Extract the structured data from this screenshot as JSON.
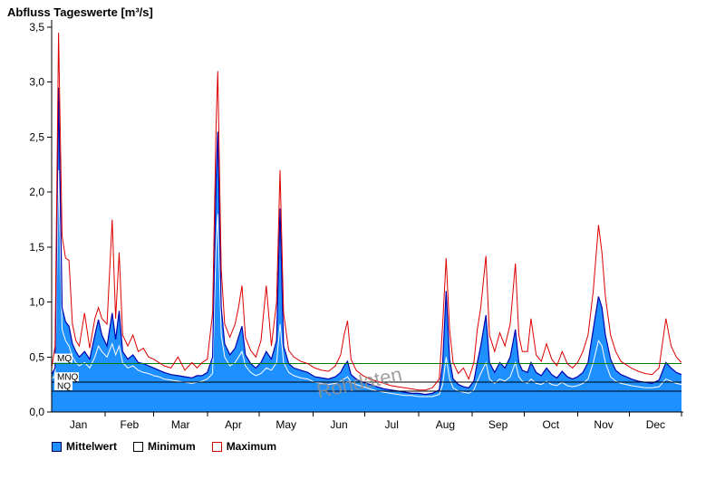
{
  "chart_data": {
    "type": "area",
    "title": "Abfluss Tageswerte [m³/s]",
    "watermark": "Rohdaten",
    "ylim": [
      0,
      3.5
    ],
    "yticks": [
      0,
      0.5,
      1.0,
      1.5,
      2.0,
      2.5,
      3.0,
      3.5
    ],
    "ytick_labels": [
      "0,0",
      "0,5",
      "1,0",
      "1,5",
      "2,0",
      "2,5",
      "3,0",
      "3,5"
    ],
    "month_labels": [
      "Jan",
      "Feb",
      "Mar",
      "Apr",
      "May",
      "Jun",
      "Jul",
      "Aug",
      "Sep",
      "Oct",
      "Nov",
      "Dec"
    ],
    "month_start_days": [
      1,
      32,
      60,
      91,
      121,
      152,
      182,
      213,
      244,
      274,
      305,
      335,
      366
    ],
    "x_days": [
      1,
      3,
      5,
      7,
      9,
      11,
      13,
      15,
      17,
      20,
      23,
      26,
      28,
      30,
      33,
      36,
      38,
      40,
      42,
      45,
      48,
      51,
      54,
      57,
      60,
      63,
      66,
      70,
      74,
      78,
      82,
      85,
      88,
      91,
      94,
      96,
      97,
      99,
      101,
      104,
      107,
      109,
      111,
      113,
      116,
      119,
      122,
      125,
      128,
      131,
      133,
      135,
      138,
      141,
      145,
      149,
      153,
      157,
      161,
      165,
      168,
      170,
      172,
      174,
      177,
      181,
      185,
      189,
      193,
      197,
      201,
      205,
      209,
      213,
      217,
      221,
      225,
      227,
      229,
      231,
      233,
      236,
      239,
      242,
      245,
      247,
      249,
      252,
      254,
      257,
      260,
      263,
      266,
      269,
      271,
      273,
      276,
      278,
      281,
      284,
      287,
      290,
      293,
      296,
      299,
      302,
      305,
      308,
      311,
      314,
      317,
      319,
      321,
      324,
      327,
      330,
      333,
      336,
      340,
      344,
      348,
      352,
      356,
      359,
      362,
      365
    ],
    "series": [
      {
        "name": "Mittelwert",
        "values": [
          0.34,
          0.4,
          2.95,
          0.95,
          0.82,
          0.78,
          0.62,
          0.55,
          0.5,
          0.55,
          0.48,
          0.7,
          0.84,
          0.7,
          0.6,
          0.9,
          0.66,
          0.92,
          0.55,
          0.48,
          0.52,
          0.45,
          0.44,
          0.42,
          0.4,
          0.38,
          0.36,
          0.34,
          0.33,
          0.32,
          0.31,
          0.33,
          0.33,
          0.36,
          0.5,
          2.1,
          2.55,
          0.95,
          0.62,
          0.52,
          0.58,
          0.68,
          0.78,
          0.52,
          0.44,
          0.4,
          0.45,
          0.55,
          0.48,
          0.65,
          1.85,
          0.6,
          0.44,
          0.4,
          0.38,
          0.36,
          0.32,
          0.31,
          0.3,
          0.32,
          0.36,
          0.42,
          0.46,
          0.34,
          0.3,
          0.27,
          0.25,
          0.23,
          0.21,
          0.2,
          0.19,
          0.18,
          0.17,
          0.17,
          0.16,
          0.17,
          0.2,
          0.45,
          1.1,
          0.48,
          0.3,
          0.25,
          0.23,
          0.22,
          0.28,
          0.45,
          0.6,
          0.88,
          0.45,
          0.36,
          0.45,
          0.4,
          0.5,
          0.75,
          0.45,
          0.38,
          0.36,
          0.45,
          0.36,
          0.33,
          0.4,
          0.34,
          0.31,
          0.37,
          0.32,
          0.3,
          0.32,
          0.36,
          0.45,
          0.75,
          1.05,
          0.95,
          0.7,
          0.48,
          0.38,
          0.34,
          0.32,
          0.3,
          0.28,
          0.27,
          0.26,
          0.29,
          0.45,
          0.4,
          0.36,
          0.34
        ]
      },
      {
        "name": "Minimum",
        "values": [
          0.3,
          0.33,
          2.2,
          0.75,
          0.65,
          0.6,
          0.5,
          0.45,
          0.42,
          0.45,
          0.4,
          0.5,
          0.6,
          0.55,
          0.5,
          0.62,
          0.52,
          0.6,
          0.45,
          0.4,
          0.42,
          0.38,
          0.36,
          0.35,
          0.33,
          0.32,
          0.3,
          0.29,
          0.28,
          0.27,
          0.26,
          0.27,
          0.28,
          0.3,
          0.35,
          1.5,
          1.8,
          0.7,
          0.5,
          0.42,
          0.45,
          0.5,
          0.55,
          0.42,
          0.36,
          0.33,
          0.35,
          0.4,
          0.38,
          0.45,
          0.8,
          0.45,
          0.36,
          0.33,
          0.31,
          0.3,
          0.27,
          0.26,
          0.25,
          0.26,
          0.28,
          0.3,
          0.32,
          0.27,
          0.25,
          0.23,
          0.21,
          0.19,
          0.18,
          0.17,
          0.16,
          0.15,
          0.15,
          0.14,
          0.14,
          0.14,
          0.16,
          0.25,
          0.5,
          0.3,
          0.22,
          0.19,
          0.18,
          0.17,
          0.2,
          0.28,
          0.35,
          0.45,
          0.3,
          0.26,
          0.3,
          0.28,
          0.32,
          0.45,
          0.32,
          0.28,
          0.26,
          0.3,
          0.26,
          0.25,
          0.28,
          0.25,
          0.24,
          0.27,
          0.24,
          0.23,
          0.24,
          0.26,
          0.3,
          0.45,
          0.65,
          0.6,
          0.45,
          0.32,
          0.28,
          0.26,
          0.25,
          0.24,
          0.23,
          0.22,
          0.22,
          0.23,
          0.3,
          0.28,
          0.26,
          0.25
        ]
      },
      {
        "name": "Maximum",
        "values": [
          0.4,
          0.6,
          3.45,
          1.6,
          1.4,
          1.38,
          0.8,
          0.65,
          0.6,
          0.9,
          0.58,
          0.85,
          0.95,
          0.85,
          0.8,
          1.75,
          0.85,
          1.45,
          0.7,
          0.6,
          0.7,
          0.55,
          0.58,
          0.5,
          0.48,
          0.45,
          0.42,
          0.4,
          0.5,
          0.38,
          0.45,
          0.4,
          0.45,
          0.48,
          0.9,
          2.6,
          3.1,
          1.3,
          0.8,
          0.68,
          0.8,
          0.95,
          1.15,
          0.68,
          0.56,
          0.5,
          0.65,
          1.15,
          0.6,
          1.0,
          2.2,
          0.9,
          0.56,
          0.5,
          0.46,
          0.44,
          0.4,
          0.38,
          0.37,
          0.42,
          0.52,
          0.7,
          0.83,
          0.48,
          0.38,
          0.33,
          0.3,
          0.28,
          0.26,
          0.24,
          0.23,
          0.22,
          0.21,
          0.2,
          0.2,
          0.22,
          0.3,
          0.8,
          1.4,
          0.75,
          0.45,
          0.35,
          0.4,
          0.3,
          0.45,
          0.75,
          0.95,
          1.42,
          0.7,
          0.55,
          0.72,
          0.6,
          0.8,
          1.35,
          0.7,
          0.55,
          0.55,
          0.85,
          0.52,
          0.46,
          0.62,
          0.48,
          0.42,
          0.55,
          0.44,
          0.4,
          0.45,
          0.55,
          0.7,
          1.1,
          1.7,
          1.45,
          1.05,
          0.7,
          0.55,
          0.46,
          0.43,
          0.4,
          0.37,
          0.35,
          0.34,
          0.4,
          0.85,
          0.6,
          0.5,
          0.45
        ]
      }
    ],
    "reference_lines": [
      {
        "label": "MQ",
        "value": 0.44,
        "color": "#007a00"
      },
      {
        "label": "MNQ",
        "value": 0.27,
        "color": "#000000"
      },
      {
        "label": "NQ",
        "value": 0.19,
        "color": "#000000"
      }
    ],
    "legend": [
      {
        "label": "Mittelwert",
        "swatch_fill": "#1e90ff",
        "swatch_border": "#000050"
      },
      {
        "label": "Minimum",
        "swatch_fill": "#ffffff",
        "swatch_border": "#000000"
      },
      {
        "label": "Maximum",
        "swatch_fill": "#ffffff",
        "swatch_border": "#cc0000"
      }
    ],
    "colors": {
      "mean_fill": "#1e90ff",
      "mean_line": "#0000b0",
      "min_line": "#ffffff",
      "max_line": "#dd0000",
      "axis": "#000000",
      "watermark": "#909090"
    }
  }
}
